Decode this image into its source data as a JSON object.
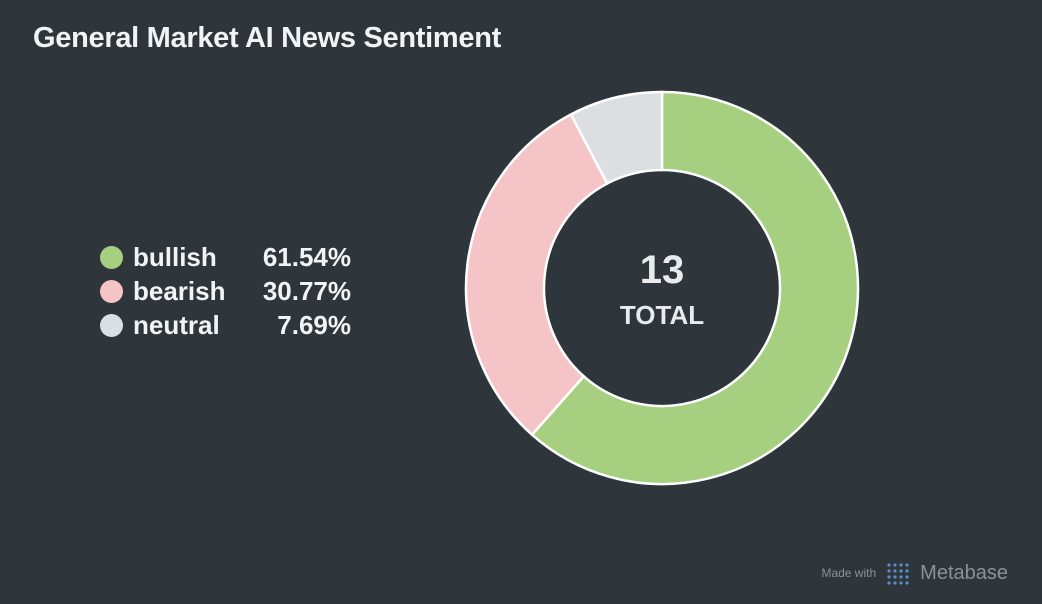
{
  "title": "General Market AI News Sentiment",
  "chart_data": {
    "type": "pie",
    "categories": [
      "bullish",
      "bearish",
      "neutral"
    ],
    "values": [
      61.54,
      30.77,
      7.69
    ],
    "value_labels": [
      "61.54%",
      "30.77%",
      "7.69%"
    ],
    "colors": [
      "#a7cf80",
      "#f5c4c6",
      "#dbdfe1"
    ],
    "total": "13",
    "total_label": "TOTAL",
    "legend_position": "left"
  },
  "footer": {
    "made_with": "Made with",
    "brand": "Metabase"
  }
}
